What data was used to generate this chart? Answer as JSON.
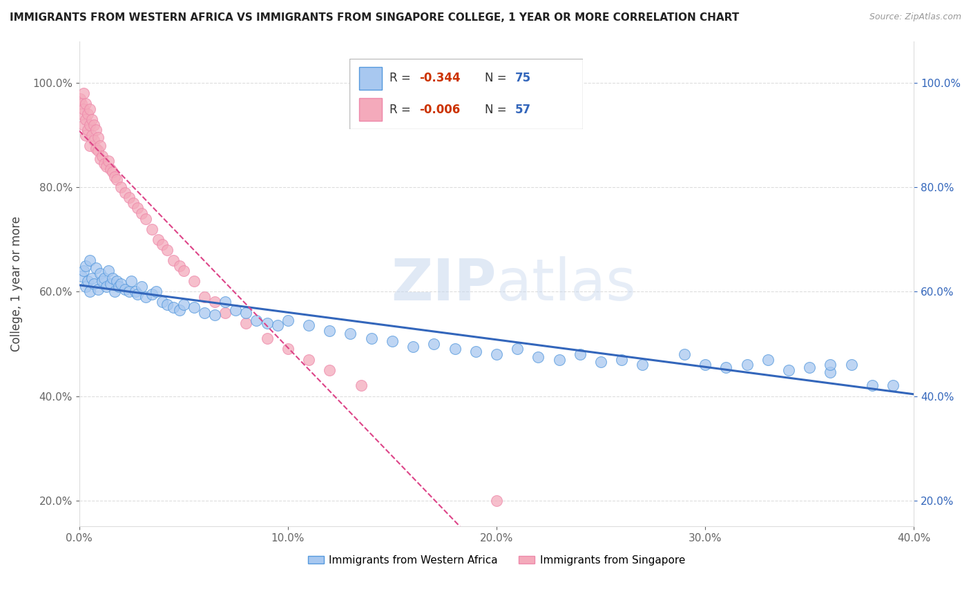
{
  "title": "IMMIGRANTS FROM WESTERN AFRICA VS IMMIGRANTS FROM SINGAPORE COLLEGE, 1 YEAR OR MORE CORRELATION CHART",
  "source_text": "Source: ZipAtlas.com",
  "ylabel": "College, 1 year or more",
  "watermark_top": "ZIP",
  "watermark_bot": "atlas",
  "blue_R": -0.344,
  "blue_N": 75,
  "pink_R": -0.006,
  "pink_N": 57,
  "blue_color": "#A8C8F0",
  "pink_color": "#F4AABB",
  "blue_edge_color": "#5599DD",
  "pink_edge_color": "#EE88AA",
  "blue_line_color": "#3366BB",
  "pink_line_color": "#DD4488",
  "xlim": [
    0.0,
    0.4
  ],
  "ylim": [
    0.15,
    1.08
  ],
  "blue_scatter_x": [
    0.001,
    0.002,
    0.003,
    0.003,
    0.004,
    0.005,
    0.005,
    0.006,
    0.007,
    0.008,
    0.009,
    0.01,
    0.011,
    0.012,
    0.013,
    0.014,
    0.015,
    0.016,
    0.017,
    0.018,
    0.019,
    0.02,
    0.022,
    0.024,
    0.025,
    0.027,
    0.028,
    0.03,
    0.032,
    0.035,
    0.037,
    0.04,
    0.042,
    0.045,
    0.048,
    0.05,
    0.055,
    0.06,
    0.065,
    0.07,
    0.075,
    0.08,
    0.085,
    0.09,
    0.095,
    0.1,
    0.11,
    0.12,
    0.13,
    0.14,
    0.15,
    0.16,
    0.17,
    0.18,
    0.19,
    0.2,
    0.21,
    0.22,
    0.23,
    0.24,
    0.25,
    0.26,
    0.27,
    0.29,
    0.3,
    0.31,
    0.32,
    0.33,
    0.34,
    0.35,
    0.36,
    0.37,
    0.38,
    0.39,
    0.36
  ],
  "blue_scatter_y": [
    0.63,
    0.64,
    0.61,
    0.65,
    0.62,
    0.66,
    0.6,
    0.625,
    0.615,
    0.645,
    0.605,
    0.635,
    0.62,
    0.625,
    0.61,
    0.64,
    0.615,
    0.625,
    0.6,
    0.62,
    0.61,
    0.615,
    0.605,
    0.6,
    0.62,
    0.6,
    0.595,
    0.61,
    0.59,
    0.595,
    0.6,
    0.58,
    0.575,
    0.57,
    0.565,
    0.575,
    0.57,
    0.56,
    0.555,
    0.58,
    0.565,
    0.56,
    0.545,
    0.54,
    0.535,
    0.545,
    0.535,
    0.525,
    0.52,
    0.51,
    0.505,
    0.495,
    0.5,
    0.49,
    0.485,
    0.48,
    0.49,
    0.475,
    0.47,
    0.48,
    0.465,
    0.47,
    0.46,
    0.48,
    0.46,
    0.455,
    0.46,
    0.47,
    0.45,
    0.455,
    0.445,
    0.46,
    0.42,
    0.42,
    0.46
  ],
  "pink_scatter_x": [
    0.0005,
    0.001,
    0.001,
    0.002,
    0.002,
    0.002,
    0.003,
    0.003,
    0.003,
    0.004,
    0.004,
    0.005,
    0.005,
    0.005,
    0.006,
    0.006,
    0.007,
    0.007,
    0.008,
    0.008,
    0.009,
    0.009,
    0.01,
    0.01,
    0.011,
    0.012,
    0.013,
    0.014,
    0.015,
    0.016,
    0.017,
    0.018,
    0.02,
    0.022,
    0.024,
    0.026,
    0.028,
    0.03,
    0.032,
    0.035,
    0.038,
    0.04,
    0.042,
    0.045,
    0.048,
    0.05,
    0.055,
    0.06,
    0.065,
    0.07,
    0.08,
    0.09,
    0.1,
    0.11,
    0.12,
    0.135,
    0.2
  ],
  "pink_scatter_y": [
    0.97,
    0.96,
    0.94,
    0.98,
    0.95,
    0.92,
    0.96,
    0.93,
    0.9,
    0.94,
    0.91,
    0.95,
    0.92,
    0.88,
    0.93,
    0.9,
    0.92,
    0.89,
    0.91,
    0.875,
    0.895,
    0.87,
    0.88,
    0.855,
    0.86,
    0.845,
    0.84,
    0.85,
    0.835,
    0.83,
    0.82,
    0.815,
    0.8,
    0.79,
    0.78,
    0.77,
    0.76,
    0.75,
    0.74,
    0.72,
    0.7,
    0.69,
    0.68,
    0.66,
    0.65,
    0.64,
    0.62,
    0.59,
    0.58,
    0.56,
    0.54,
    0.51,
    0.49,
    0.47,
    0.45,
    0.42,
    0.2
  ],
  "legend_blue_label": "Immigrants from Western Africa",
  "legend_pink_label": "Immigrants from Singapore",
  "background_color": "#FFFFFF",
  "grid_color": "#DDDDDD"
}
